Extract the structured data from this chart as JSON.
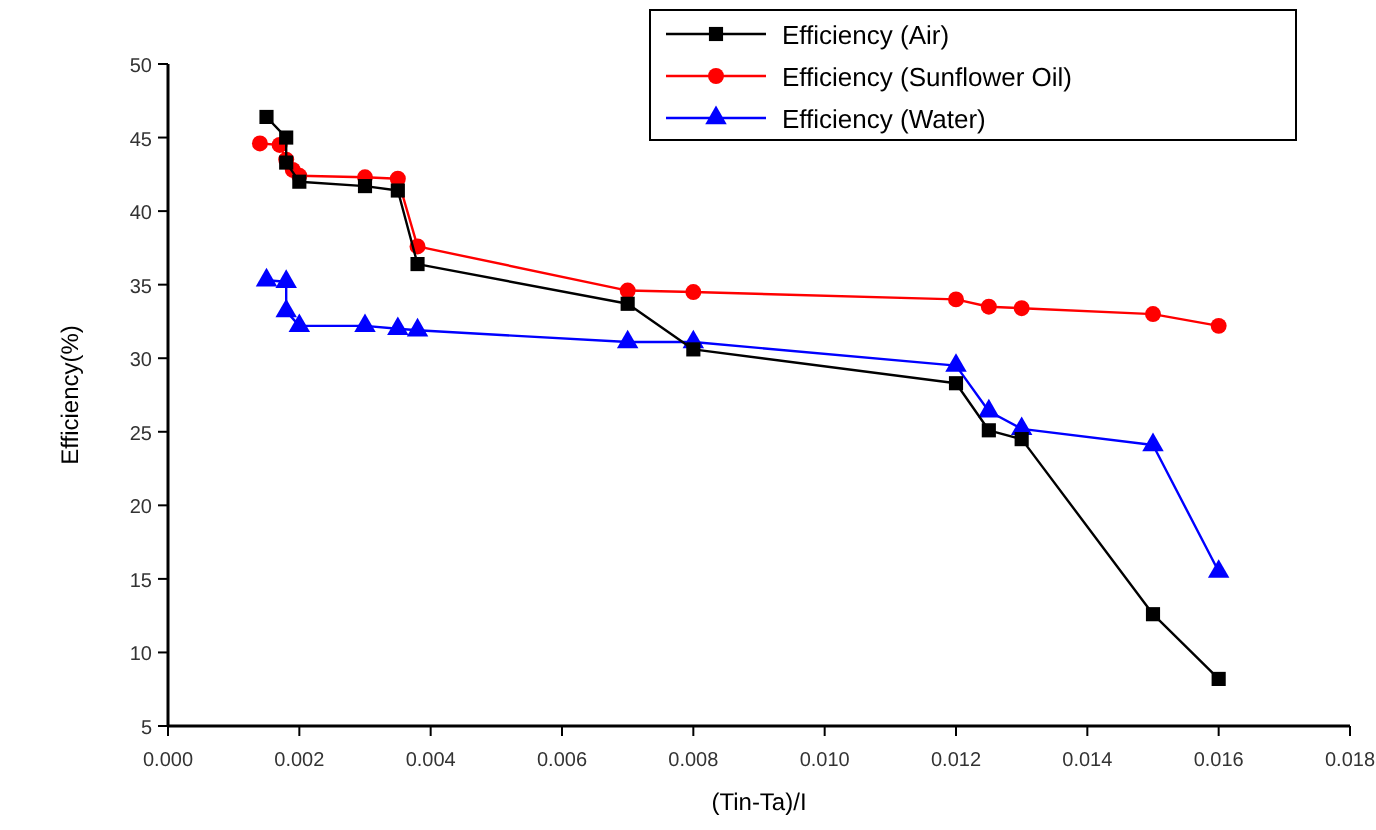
{
  "chart_data": {
    "type": "line",
    "xlabel": "(Tin-Ta)/I",
    "ylabel": "Efficiency(%)",
    "xlim": [
      0,
      0.018
    ],
    "ylim": [
      5,
      50
    ],
    "xticks": [
      {
        "value": 0,
        "label": "0.000"
      },
      {
        "value": 0.002,
        "label": "0.002"
      },
      {
        "value": 0.004,
        "label": "0.004"
      },
      {
        "value": 0.006,
        "label": "0.006"
      },
      {
        "value": 0.008,
        "label": "0.008"
      },
      {
        "value": 0.01,
        "label": "0.010"
      },
      {
        "value": 0.012,
        "label": "0.012"
      },
      {
        "value": 0.014,
        "label": "0.014"
      },
      {
        "value": 0.016,
        "label": "0.016"
      },
      {
        "value": 0.018,
        "label": "0.018"
      }
    ],
    "yticks": [
      5,
      10,
      15,
      20,
      25,
      30,
      35,
      40,
      45,
      50
    ],
    "legend": "top right",
    "grid": false,
    "series": [
      {
        "name": "Efficiency (Air)",
        "color": "#000000",
        "marker": "square",
        "x": [
          0.0015,
          0.0018,
          0.0018,
          0.002,
          0.003,
          0.0035,
          0.0038,
          0.007,
          0.008,
          0.012,
          0.0125,
          0.013,
          0.015,
          0.016
        ],
        "values": [
          46.4,
          45,
          43.3,
          42,
          41.7,
          41.4,
          36.4,
          33.7,
          30.6,
          28.3,
          25.1,
          24.5,
          12.6,
          8.2
        ]
      },
      {
        "name": "Efficiency (Sunflower Oil)",
        "color": "#ff0000",
        "marker": "circle",
        "x": [
          0.0014,
          0.0017,
          0.0018,
          0.0019,
          0.002,
          0.003,
          0.0035,
          0.0038,
          0.007,
          0.008,
          0.012,
          0.0125,
          0.013,
          0.015,
          0.016
        ],
        "values": [
          44.6,
          44.5,
          43.5,
          42.8,
          42.4,
          42.3,
          42.2,
          37.6,
          34.6,
          34.5,
          34,
          33.5,
          33.4,
          33,
          32.2
        ]
      },
      {
        "name": "Efficiency (Water)",
        "color": "#0000ff",
        "marker": "triangle",
        "x": [
          0.0015,
          0.0018,
          0.0018,
          0.002,
          0.003,
          0.0035,
          0.0038,
          0.007,
          0.008,
          0.012,
          0.0125,
          0.013,
          0.015,
          0.016
        ],
        "values": [
          35.3,
          35.2,
          33.2,
          32.2,
          32.2,
          32,
          31.9,
          31.1,
          31.1,
          29.5,
          26.4,
          25.2,
          24.1,
          15.5
        ]
      }
    ]
  }
}
